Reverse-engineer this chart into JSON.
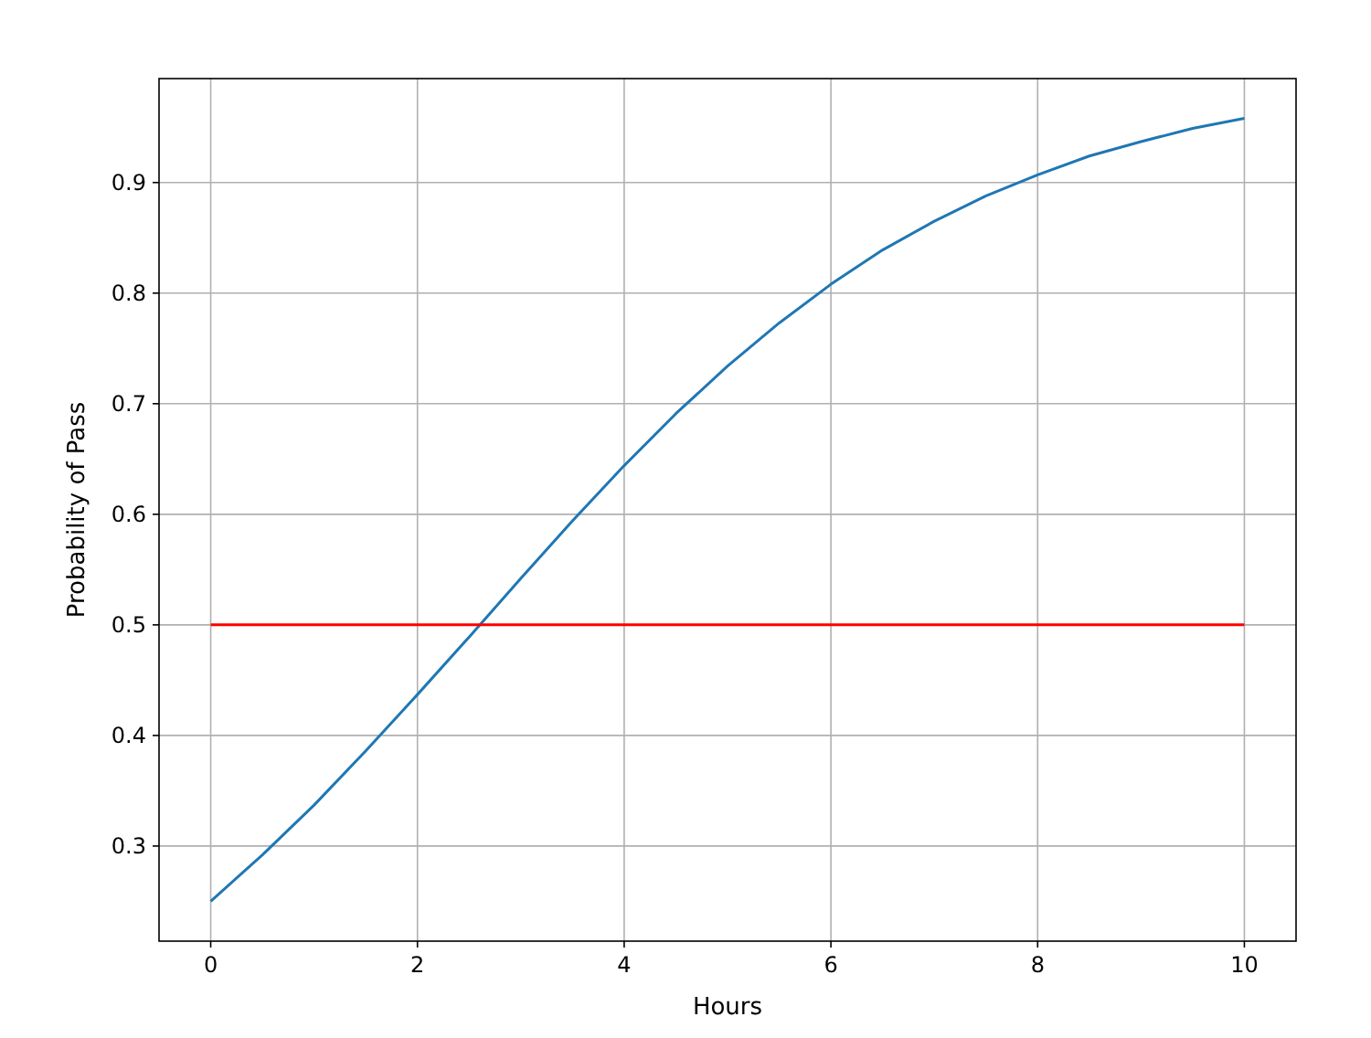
{
  "chart_data": {
    "type": "line",
    "xlabel": "Hours",
    "ylabel": "Probability of Pass",
    "x": [
      0,
      0.5,
      1,
      1.5,
      2,
      2.5,
      3,
      3.5,
      4,
      4.5,
      5,
      5.5,
      6,
      6.5,
      7,
      7.5,
      8,
      8.5,
      9,
      9.5,
      10
    ],
    "series": [
      {
        "color": "#1f77b4",
        "values": [
          0.25,
          0.292,
          0.337,
          0.386,
          0.437,
          0.489,
          0.542,
          0.594,
          0.644,
          0.691,
          0.734,
          0.773,
          0.808,
          0.839,
          0.865,
          0.888,
          0.907,
          0.924,
          0.937,
          0.949,
          0.958
        ]
      },
      {
        "color": "#ff0000",
        "x": [
          0,
          10
        ],
        "values": [
          0.5,
          0.5
        ]
      }
    ],
    "xlim": [
      -0.5,
      10.5
    ],
    "xticks": [
      0,
      2,
      4,
      6,
      8,
      10
    ],
    "ylim": [
      0.214,
      0.994
    ],
    "yticks": [
      0.3,
      0.4,
      0.5,
      0.6,
      0.7,
      0.8,
      0.9
    ],
    "grid": true
  }
}
